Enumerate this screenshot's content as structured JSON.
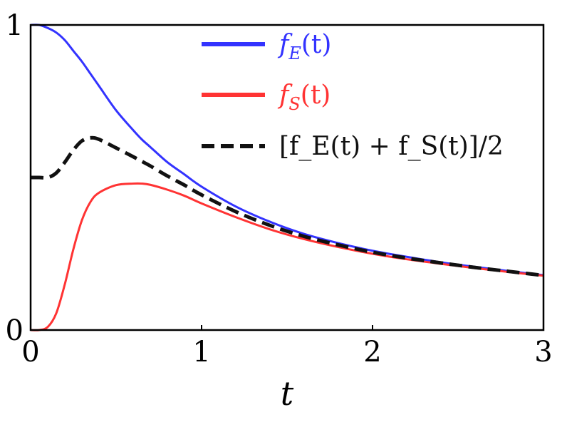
{
  "chart_data": {
    "type": "line",
    "xlabel": "t",
    "ylabel": "",
    "xlim": [
      0,
      3
    ],
    "ylim": [
      0,
      1
    ],
    "x_ticks": [
      {
        "value": 0,
        "label": "0"
      },
      {
        "value": 1,
        "label": "1"
      },
      {
        "value": 2,
        "label": "2"
      },
      {
        "value": 3,
        "label": "3"
      }
    ],
    "y_ticks": [
      {
        "value": 0,
        "label": "0"
      },
      {
        "value": 1,
        "label": "1"
      }
    ],
    "grid": false,
    "legend_position": "top-right",
    "x": [
      0,
      0.05,
      0.1,
      0.15,
      0.2,
      0.25,
      0.3,
      0.35,
      0.4,
      0.5,
      0.6,
      0.65,
      0.7,
      0.8,
      0.9,
      1.0,
      1.2,
      1.4,
      1.6,
      1.8,
      2.0,
      2.2,
      2.4,
      2.6,
      2.8,
      3.0
    ],
    "series": [
      {
        "name": "f_E(t)",
        "legend": {
          "f": "f",
          "sub": "E",
          "arg": "(t)"
        },
        "color": "#3333ff",
        "dash": "solid",
        "values": [
          1.0,
          1.0,
          0.99,
          0.975,
          0.95,
          0.915,
          0.88,
          0.84,
          0.8,
          0.72,
          0.655,
          0.625,
          0.6,
          0.55,
          0.51,
          0.47,
          0.405,
          0.355,
          0.315,
          0.285,
          0.26,
          0.24,
          0.222,
          0.207,
          0.193,
          0.18
        ]
      },
      {
        "name": "f_S(t)",
        "legend": {
          "f": "f",
          "sub": "S",
          "arg": "(t)"
        },
        "color": "#ff3333",
        "dash": "solid",
        "values": [
          0.0,
          0.0,
          0.01,
          0.055,
          0.15,
          0.265,
          0.36,
          0.42,
          0.45,
          0.475,
          0.48,
          0.48,
          0.476,
          0.46,
          0.44,
          0.415,
          0.37,
          0.33,
          0.298,
          0.272,
          0.25,
          0.232,
          0.217,
          0.203,
          0.19,
          0.178
        ]
      },
      {
        "name": "[f_E(t) + f_S(t)]/2",
        "legend": {
          "text": "[f_E(t) + f_S(t)]/2"
        },
        "color": "#111111",
        "dash": "dashed",
        "values": [
          0.5,
          0.5,
          0.5,
          0.515,
          0.55,
          0.59,
          0.62,
          0.63,
          0.625,
          0.597,
          0.568,
          0.553,
          0.538,
          0.505,
          0.475,
          0.443,
          0.388,
          0.343,
          0.307,
          0.279,
          0.255,
          0.236,
          0.22,
          0.205,
          0.192,
          0.179
        ]
      }
    ]
  }
}
